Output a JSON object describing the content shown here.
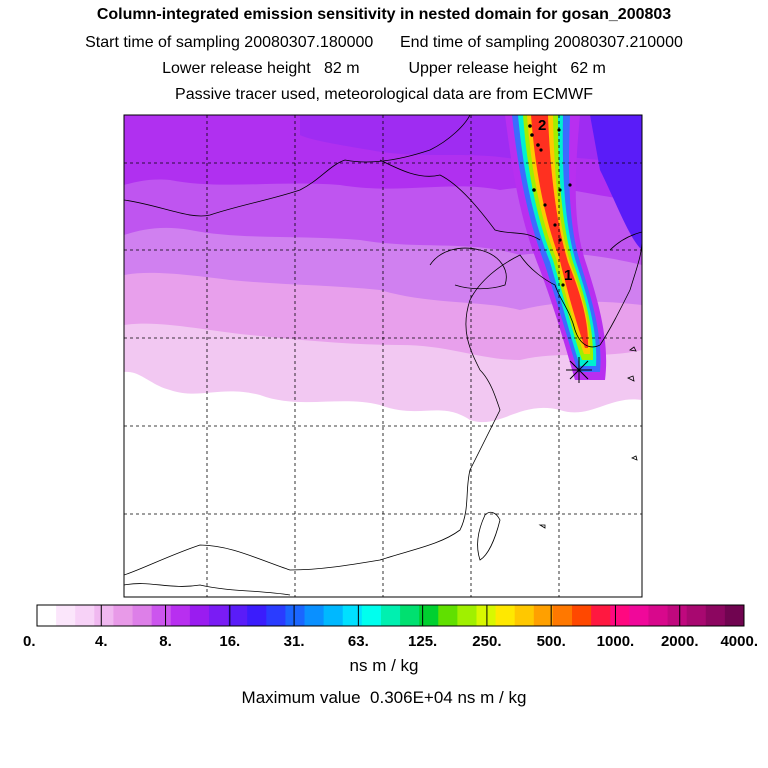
{
  "header": {
    "title": "Column-integrated emission sensitivity in nested domain for gosan_200803",
    "line2": "Start time of sampling 20080307.180000      End time of sampling 20080307.210000",
    "line3": "Lower release height   82 m           Upper release height   62 m",
    "line4": "Passive tracer used, meteorological data are from ECMWF"
  },
  "map": {
    "receptor_marker": "asterisk-icon",
    "trajectory_labels": [
      "2",
      "1"
    ]
  },
  "legend": {
    "colors": [
      "#ffffff",
      "#fbe6fb",
      "#f7d2f7",
      "#f0b8f0",
      "#e89ae8",
      "#dd7fe8",
      "#cc55ee",
      "#b82ff0",
      "#9a1cf0",
      "#7a1cf4",
      "#5a1cf8",
      "#3b1cfc",
      "#2a3cff",
      "#1a66ff",
      "#0a90ff",
      "#00b8ff",
      "#00e0ff",
      "#00ffee",
      "#00f0b0",
      "#00e070",
      "#00d030",
      "#60e000",
      "#a0f000",
      "#d8f800",
      "#ffe800",
      "#ffc800",
      "#ffa000",
      "#ff7800",
      "#ff4800",
      "#ff1840",
      "#ff0880",
      "#f0089a",
      "#d8088c",
      "#c0087e",
      "#a80870",
      "#8c0660",
      "#700450"
    ],
    "tick_labels": [
      "0.",
      "4.",
      "8.",
      "16.",
      "31.",
      "63.",
      "125.",
      "250.",
      "500.",
      "1000.",
      "2000.",
      "4000."
    ],
    "units": "ns m / kg",
    "maximum": "Maximum value  0.306E+04 ns m / kg"
  }
}
